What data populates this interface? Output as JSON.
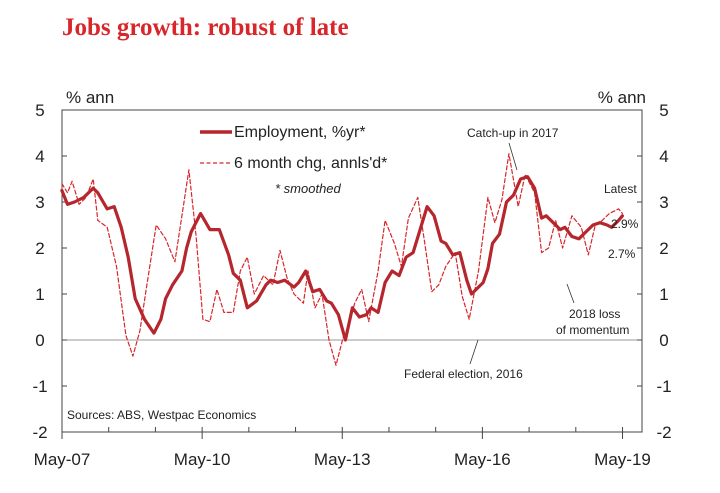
{
  "chart_data": {
    "type": "line",
    "title": "Jobs growth: robust of late",
    "ylabel_left": "% ann",
    "ylabel_right": "% ann",
    "ylim": [
      -2,
      5
    ],
    "yticks": [
      "5",
      "4",
      "3",
      "2",
      "1",
      "0",
      "-1",
      "-2"
    ],
    "xlim": [
      2007.333,
      2019.75
    ],
    "xticks": [
      {
        "label": "May-07",
        "x": 2007.333
      },
      {
        "label": "May-10",
        "x": 2010.333
      },
      {
        "label": "May-13",
        "x": 2013.333
      },
      {
        "label": "May-16",
        "x": 2016.333
      },
      {
        "label": "May-19",
        "x": 2019.333
      }
    ],
    "series": [
      {
        "name": "Employment, %yr*",
        "color": "#b5262d",
        "style": "solid",
        "x": [
          2007.33,
          2007.45,
          2007.6,
          2007.8,
          2008.0,
          2008.1,
          2008.3,
          2008.45,
          2008.6,
          2008.75,
          2008.9,
          2009.1,
          2009.3,
          2009.45,
          2009.55,
          2009.7,
          2009.9,
          2010.0,
          2010.1,
          2010.3,
          2010.5,
          2010.7,
          2010.9,
          2011.0,
          2011.15,
          2011.3,
          2011.5,
          2011.7,
          2011.8,
          2011.95,
          2012.1,
          2012.3,
          2012.4,
          2012.55,
          2012.7,
          2012.85,
          2013.0,
          2013.1,
          2013.25,
          2013.4,
          2013.55,
          2013.7,
          2013.85,
          2013.95,
          2014.1,
          2014.25,
          2014.4,
          2014.55,
          2014.7,
          2014.85,
          2015.0,
          2015.15,
          2015.3,
          2015.45,
          2015.55,
          2015.7,
          2015.85,
          2016.0,
          2016.1,
          2016.2,
          2016.35,
          2016.45,
          2016.55,
          2016.7,
          2016.85,
          2017.0,
          2017.15,
          2017.3,
          2017.45,
          2017.6,
          2017.7,
          2017.85,
          2018.0,
          2018.1,
          2018.25,
          2018.4,
          2018.55,
          2018.7,
          2018.85,
          2019.0,
          2019.1,
          2019.25,
          2019.33
        ],
        "values": [
          3.25,
          2.95,
          3.0,
          3.1,
          3.3,
          3.2,
          2.85,
          2.9,
          2.45,
          1.8,
          0.9,
          0.45,
          0.15,
          0.45,
          0.9,
          1.2,
          1.5,
          2.0,
          2.35,
          2.75,
          2.4,
          2.4,
          1.85,
          1.45,
          1.3,
          0.7,
          0.85,
          1.2,
          1.3,
          1.25,
          1.3,
          1.15,
          1.25,
          1.5,
          1.05,
          1.1,
          0.85,
          0.8,
          0.55,
          0.0,
          0.7,
          0.5,
          0.55,
          0.7,
          0.6,
          1.25,
          1.5,
          1.4,
          1.8,
          1.9,
          2.4,
          2.9,
          2.7,
          2.15,
          2.1,
          1.85,
          1.9,
          1.3,
          1.0,
          1.1,
          1.25,
          1.55,
          2.1,
          2.3,
          3.0,
          3.15,
          3.5,
          3.55,
          3.3,
          2.65,
          2.7,
          2.55,
          2.4,
          2.45,
          2.25,
          2.2,
          2.35,
          2.5,
          2.55,
          2.5,
          2.45,
          2.6,
          2.7
        ]
      },
      {
        "name": "6 month chg, annls'd*",
        "color": "#d9262a",
        "style": "dashed",
        "x": [
          2007.33,
          2007.45,
          2007.55,
          2007.7,
          2007.85,
          2008.0,
          2008.1,
          2008.3,
          2008.5,
          2008.7,
          2008.85,
          2009.0,
          2009.15,
          2009.35,
          2009.55,
          2009.75,
          2009.9,
          2010.05,
          2010.2,
          2010.35,
          2010.5,
          2010.65,
          2010.8,
          2011.0,
          2011.15,
          2011.3,
          2011.45,
          2011.65,
          2011.85,
          2012.0,
          2012.15,
          2012.3,
          2012.5,
          2012.6,
          2012.75,
          2012.9,
          2013.05,
          2013.2,
          2013.35,
          2013.45,
          2013.6,
          2013.75,
          2013.9,
          2014.1,
          2014.25,
          2014.45,
          2014.6,
          2014.75,
          2014.95,
          2015.1,
          2015.25,
          2015.4,
          2015.55,
          2015.75,
          2015.9,
          2016.05,
          2016.25,
          2016.45,
          2016.6,
          2016.75,
          2016.9,
          2017.1,
          2017.25,
          2017.45,
          2017.6,
          2017.75,
          2017.9,
          2018.05,
          2018.25,
          2018.45,
          2018.6,
          2018.75,
          2018.9,
          2019.05,
          2019.25,
          2019.33
        ],
        "values": [
          3.4,
          3.2,
          3.45,
          2.95,
          3.1,
          3.5,
          2.6,
          2.45,
          1.6,
          0.1,
          -0.35,
          0.2,
          1.2,
          2.5,
          2.2,
          1.7,
          2.7,
          3.7,
          2.3,
          0.45,
          0.4,
          1.1,
          0.6,
          0.6,
          1.5,
          1.8,
          1.0,
          1.4,
          1.2,
          1.95,
          1.35,
          1.0,
          0.8,
          1.5,
          0.7,
          1.0,
          0.0,
          -0.55,
          0.05,
          0.25,
          0.8,
          1.1,
          0.4,
          1.5,
          2.6,
          2.1,
          1.6,
          2.65,
          3.1,
          2.1,
          1.05,
          1.2,
          1.6,
          1.9,
          0.95,
          0.45,
          1.5,
          3.1,
          2.55,
          3.05,
          4.05,
          2.9,
          3.6,
          3.2,
          1.9,
          2.0,
          2.6,
          2.0,
          2.7,
          2.45,
          1.85,
          2.5,
          2.6,
          2.75,
          2.85,
          2.75
        ]
      }
    ],
    "legend": {
      "entries": [
        "Employment, %yr*",
        "6 month chg, annls'd*"
      ],
      "note": "* smoothed",
      "placement": "top-center"
    },
    "annotations": {
      "catchup": "Catch-up in 2017",
      "latest": "Latest",
      "latest_value_1": "2.9%",
      "latest_value_2": "2.7%",
      "loss_line1": "2018 loss",
      "loss_line2": "of momentum",
      "election": "Federal election, 2016"
    },
    "source": "Sources: ABS, Westpac Economics"
  }
}
